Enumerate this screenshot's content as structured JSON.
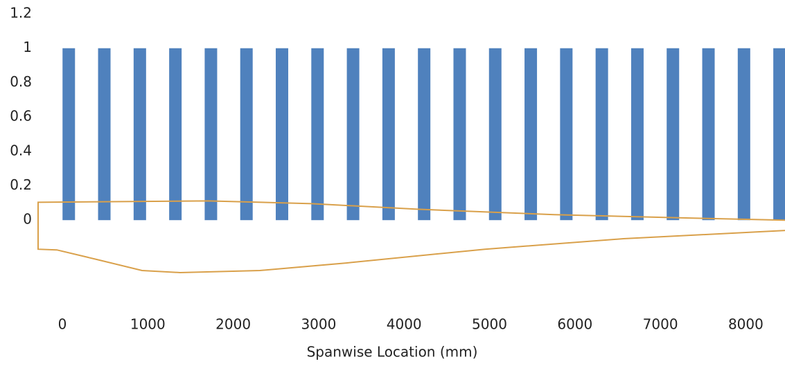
{
  "chart_data": {
    "type": "combo",
    "x_label": "Spanwise Location (mm)",
    "xlim": [
      -730,
      8459
    ],
    "xticks": [
      0,
      1000,
      2000,
      3000,
      4000,
      5000,
      6000,
      7000,
      8000
    ],
    "ylim": [
      -0.4,
      1.2
    ],
    "yticks": [
      0,
      0.2,
      0.4,
      0.6,
      0.8,
      1,
      1.2
    ],
    "series": [
      {
        "type": "bar",
        "color": "#4f81bd",
        "x": [
          75,
          491,
          907,
          1323,
          1739,
          2155,
          2571,
          2987,
          3403,
          3819,
          4235,
          4651,
          5067,
          5483,
          5899,
          6315,
          6731,
          7147,
          7563,
          7979,
          8395
        ],
        "values": [
          1,
          1,
          1,
          1,
          1,
          1,
          1,
          1,
          1,
          1,
          1,
          1,
          1,
          1,
          1,
          1,
          1,
          1,
          1,
          1,
          1
        ]
      },
      {
        "type": "line",
        "color": "#d9a04a",
        "x": [
          8459,
          7380,
          5758,
          4136,
          2920,
          1703,
          -284,
          -284,
          -65,
          406,
          933,
          1379,
          2311,
          3325,
          4947,
          6569,
          8459
        ],
        "values": [
          0.0,
          0.012,
          0.032,
          0.064,
          0.096,
          0.112,
          0.104,
          -0.169,
          -0.173,
          -0.229,
          -0.293,
          -0.305,
          -0.293,
          -0.249,
          -0.169,
          -0.108,
          -0.06
        ]
      }
    ]
  }
}
